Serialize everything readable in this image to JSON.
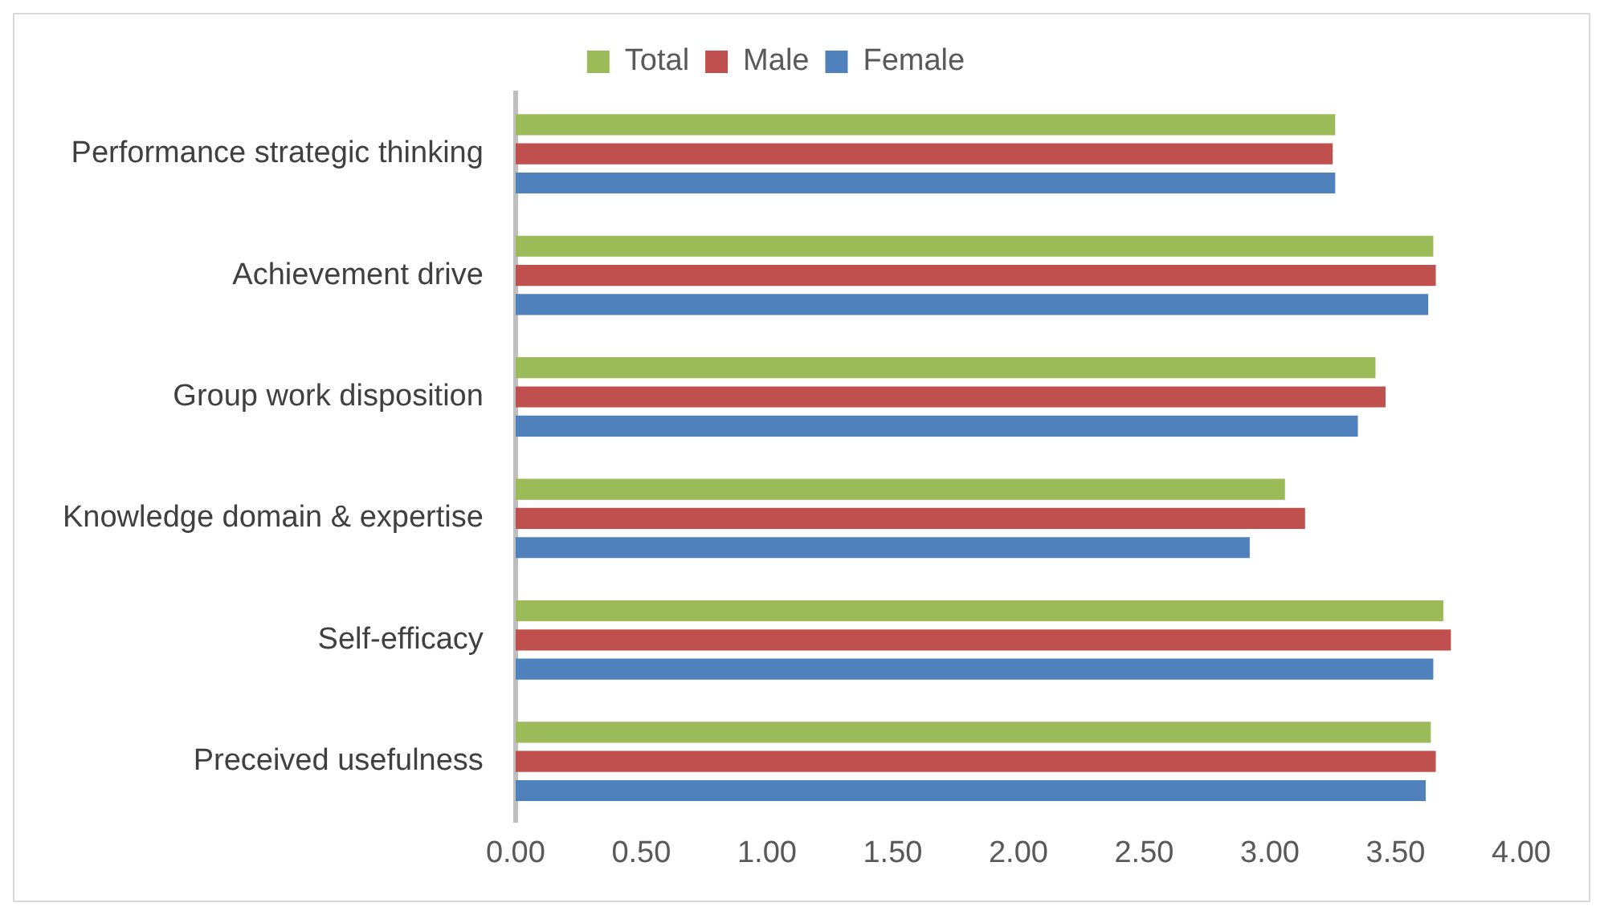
{
  "chart_data": {
    "type": "bar",
    "orientation": "horizontal",
    "categories": [
      "Performance strategic thinking",
      "Achievement drive",
      "Group work disposition",
      "Knowledge domain & expertise",
      "Self-efficacy",
      "Preceived usefulness"
    ],
    "series": [
      {
        "name": "Total",
        "color": "#9bbb59",
        "values": [
          3.26,
          3.65,
          3.42,
          3.06,
          3.69,
          3.64
        ]
      },
      {
        "name": "Male",
        "color": "#c0504d",
        "values": [
          3.25,
          3.66,
          3.46,
          3.14,
          3.72,
          3.66
        ]
      },
      {
        "name": "Female",
        "color": "#4f81bd",
        "values": [
          3.26,
          3.63,
          3.35,
          2.92,
          3.65,
          3.62
        ]
      }
    ],
    "xlim": [
      0,
      4
    ],
    "xticks": [
      {
        "value": 0,
        "label": "0.00"
      },
      {
        "value": 0.5,
        "label": "0.50"
      },
      {
        "value": 1,
        "label": "1.00"
      },
      {
        "value": 1.5,
        "label": "1.50"
      },
      {
        "value": 2,
        "label": "2.00"
      },
      {
        "value": 2.5,
        "label": "2.50"
      },
      {
        "value": 3,
        "label": "3.00"
      },
      {
        "value": 3.5,
        "label": "3.50"
      },
      {
        "value": 4,
        "label": "4.00"
      }
    ],
    "grid": false,
    "legend": "top"
  }
}
